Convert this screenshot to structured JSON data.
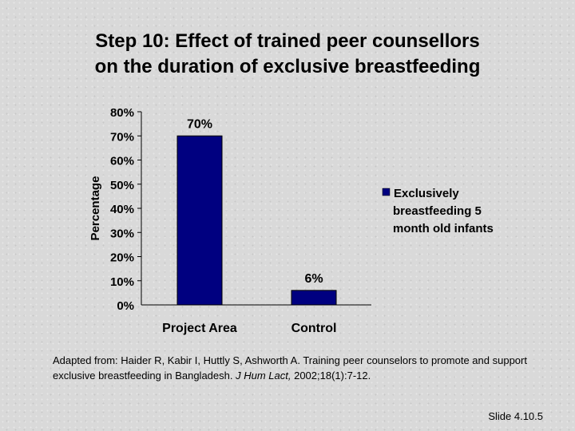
{
  "slide": {
    "title_line1": "Step 10: Effect of trained peer counsellors",
    "title_line2": "on the duration of exclusive breastfeeding",
    "citation_prefix": "Adapted from: Haider R, Kabir I, Huttly S, Ashworth A. Training peer counselors to promote and support exclusive breastfeeding in Bangladesh.",
    "citation_journal": "J Hum Lact,",
    "citation_suffix": "2002;18(1):7-12.",
    "slide_number": "Slide 4.10.5"
  },
  "chart_data": {
    "type": "bar",
    "categories": [
      "Project Area",
      "Control"
    ],
    "series": [
      {
        "name": "Exclusively breastfeeding 5 month old infants",
        "values": [
          70,
          6
        ],
        "data_labels": [
          "70%",
          "6%"
        ],
        "color": "#000080"
      }
    ],
    "ylabel": "Percentage",
    "ylim": [
      0,
      80
    ],
    "yticks": [
      0,
      10,
      20,
      30,
      40,
      50,
      60,
      70,
      80
    ],
    "ytick_labels": [
      "0%",
      "10%",
      "20%",
      "30%",
      "40%",
      "50%",
      "60%",
      "70%",
      "80%"
    ],
    "legend_lines": [
      "Exclusively",
      "breastfeeding 5",
      "month old infants"
    ],
    "legend_position": "right",
    "grid": false
  }
}
